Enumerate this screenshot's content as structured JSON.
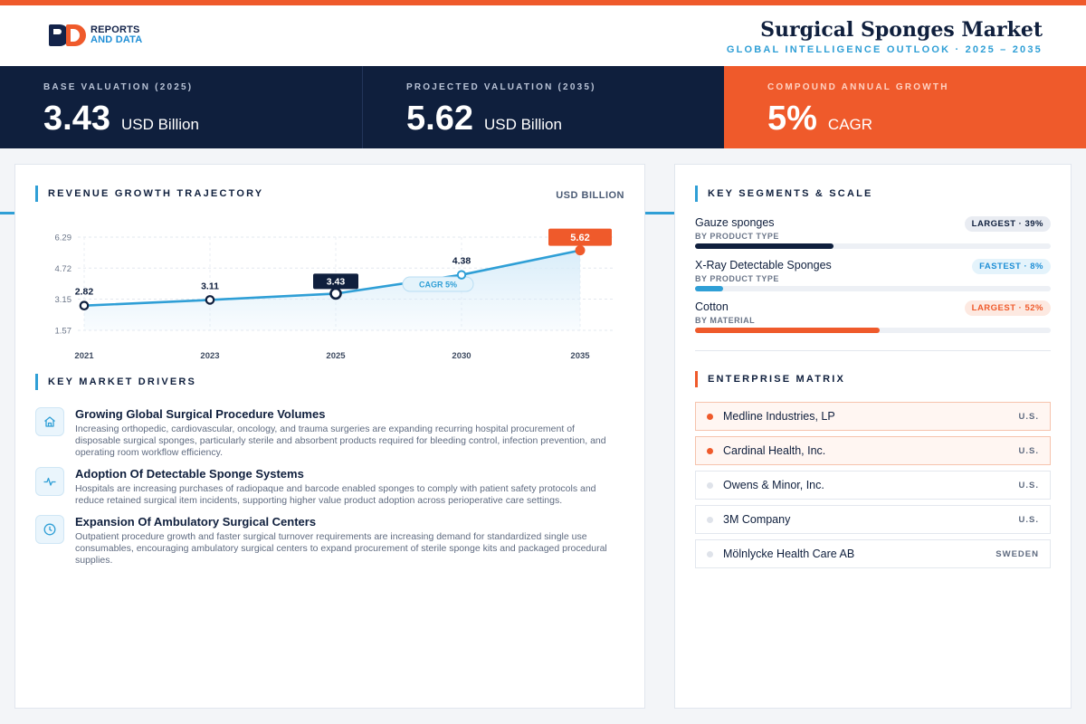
{
  "brand": {
    "line1": "REPORTS",
    "line2": "AND DATA"
  },
  "header": {
    "title": "Surgical Sponges Market",
    "subtitle": "GLOBAL INTELLIGENCE OUTLOOK  ·  2025 – 2035"
  },
  "kpis": [
    {
      "label": "BASE VALUATION (2025)",
      "value": "3.43",
      "unit": "USD Billion"
    },
    {
      "label": "PROJECTED VALUATION (2035)",
      "value": "5.62",
      "unit": "USD Billion"
    },
    {
      "label": "COMPOUND ANNUAL GROWTH",
      "value": "5%",
      "unit": "CAGR"
    }
  ],
  "revenue": {
    "title": "REVENUE GROWTH TRAJECTORY",
    "unit": "USD BILLION"
  },
  "chart_data": {
    "type": "area",
    "title": "REVENUE GROWTH TRAJECTORY",
    "unit": "USD BILLION",
    "x": [
      "2021",
      "2023",
      "2025",
      "2030",
      "2035"
    ],
    "values": [
      2.82,
      3.11,
      3.43,
      4.38,
      5.62
    ],
    "value_labels": [
      "2.82",
      "3.11",
      "3.43",
      "4.38",
      "5.62"
    ],
    "yticks": [
      "6.29",
      "4.72",
      "3.15",
      "1.57"
    ],
    "ylim": [
      1.57,
      6.29
    ],
    "grid": true,
    "annotation": "CAGR 5%",
    "colors": {
      "line": "#2f9fd6",
      "highlight": "#0f1f3d",
      "final": "#ef5a2b",
      "area": "#d7ecf9"
    }
  },
  "drivers": {
    "title": "KEY MARKET DRIVERS",
    "items": [
      {
        "icon": "home-icon",
        "title": "Growing Global Surgical Procedure Volumes",
        "text": "Increasing orthopedic, cardiovascular, oncology, and trauma surgeries are expanding recurring hospital procurement of disposable surgical sponges, particularly sterile and absorbent products required for bleeding control, infection prevention, and operating room workflow efficiency."
      },
      {
        "icon": "pulse-icon",
        "title": "Adoption Of Detectable Sponge Systems",
        "text": "Hospitals are increasing purchases of radiopaque and barcode enabled sponges to comply with patient safety protocols and reduce retained surgical item incidents, supporting higher value product adoption across perioperative care settings."
      },
      {
        "icon": "clock-icon",
        "title": "Expansion Of Ambulatory Surgical Centers",
        "text": "Outpatient procedure growth and faster surgical turnover requirements are increasing demand for standardized single use consumables, encouraging ambulatory surgical centers to expand procurement of sterile sponge kits and packaged procedural supplies."
      }
    ]
  },
  "segments": {
    "title": "KEY SEGMENTS & SCALE",
    "items": [
      {
        "name": "Gauze sponges",
        "category": "BY PRODUCT TYPE",
        "badge": "LARGEST · 39%",
        "share": 0.39,
        "color": "#0f1f3d",
        "badge_bg": "#e9ecf2",
        "badge_fg": "#0f1f3d"
      },
      {
        "name": "X-Ray Detectable Sponges",
        "category": "BY PRODUCT TYPE",
        "badge": "FASTEST · 8%",
        "share": 0.08,
        "color": "#2f9fd6",
        "badge_bg": "#e4f3fb",
        "badge_fg": "#1f8fd6"
      },
      {
        "name": "Cotton",
        "category": "BY MATERIAL",
        "badge": "LARGEST · 52%",
        "share": 0.52,
        "color": "#ef5a2b",
        "badge_bg": "#fde9e1",
        "badge_fg": "#ef5a2b"
      }
    ]
  },
  "enterprise": {
    "title": "ENTERPRISE MATRIX",
    "items": [
      {
        "name": "Medline Industries, LP",
        "country": "U.S.",
        "highlight": true
      },
      {
        "name": "Cardinal Health, Inc.",
        "country": "U.S.",
        "highlight": true
      },
      {
        "name": "Owens & Minor, Inc.",
        "country": "U.S.",
        "highlight": false
      },
      {
        "name": "3M Company",
        "country": "U.S.",
        "highlight": false
      },
      {
        "name": "Mölnlycke Health Care AB",
        "country": "SWEDEN",
        "highlight": false
      }
    ]
  }
}
